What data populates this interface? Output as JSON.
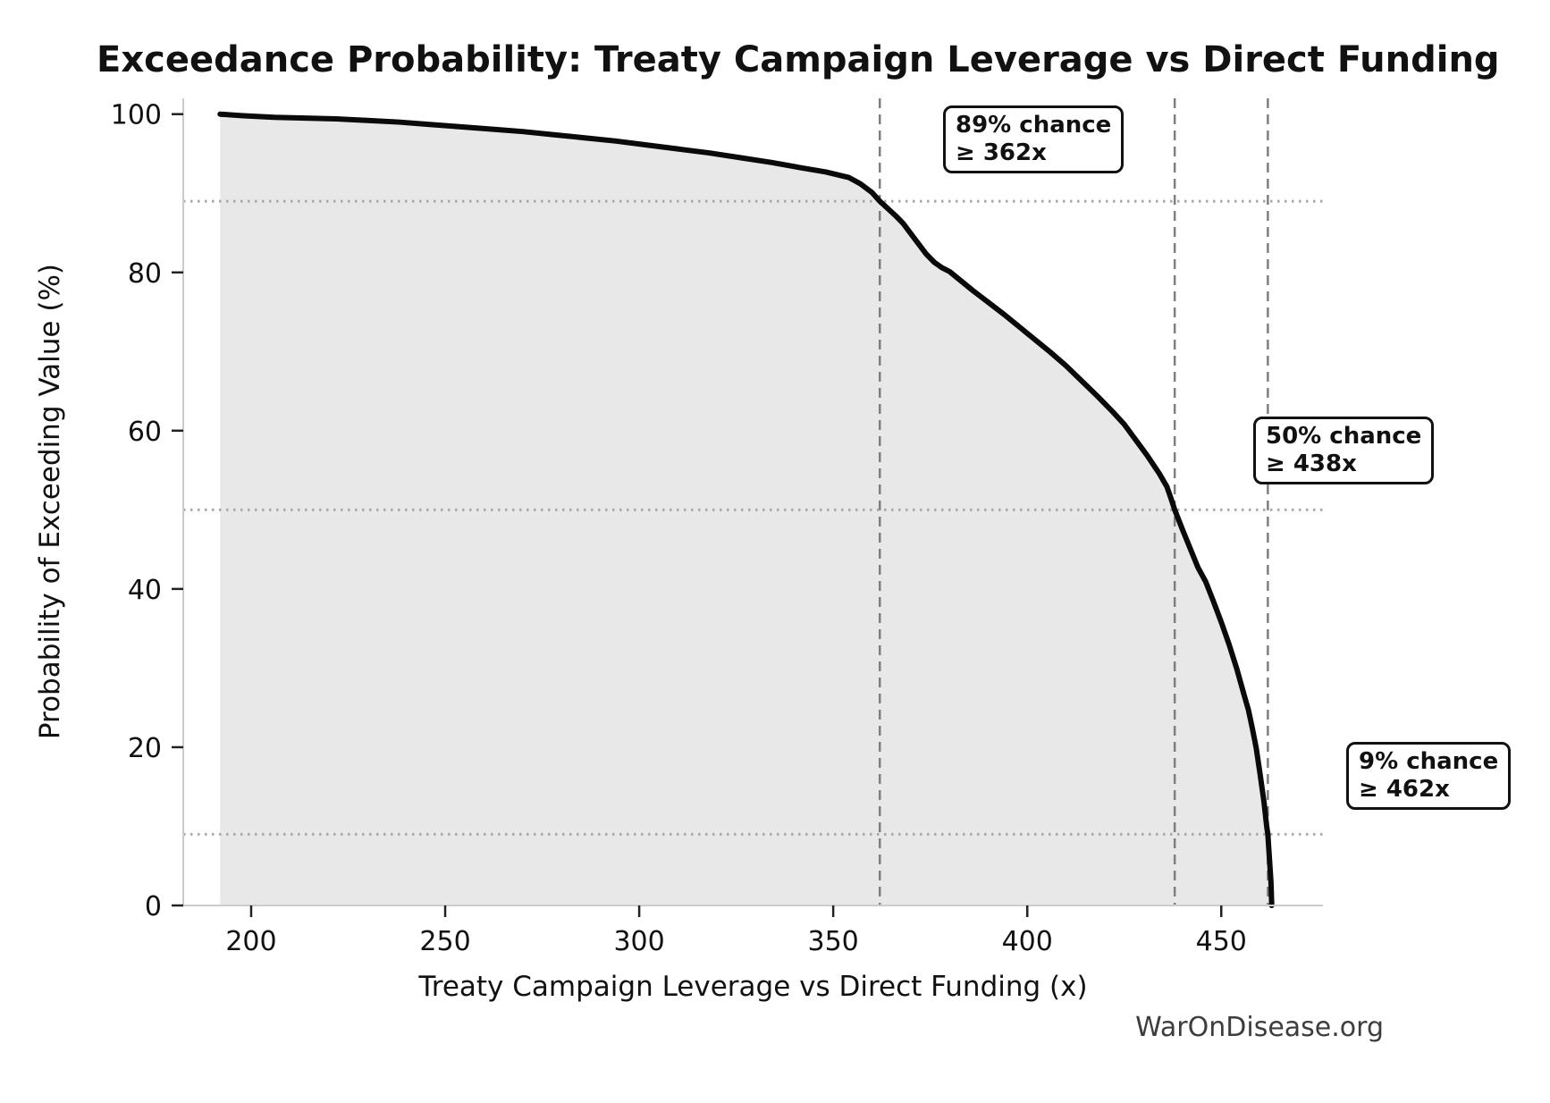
{
  "title": "Exceedance Probability: Treaty Campaign Leverage vs Direct Funding",
  "watermark": "WarOnDisease.org",
  "colors": {
    "curve": "#0a0a0a",
    "fill": "#e8e8e8",
    "dashed_line": "#7f7f7f",
    "dotted_line": "#a8a8a8",
    "spine": "#cccccc",
    "tick_mark": "#222222",
    "annotation_border": "#111111",
    "watermark_text": "#3d3d3d"
  },
  "chart_data": {
    "type": "area",
    "title": "Exceedance Probability: Treaty Campaign Leverage vs Direct Funding",
    "xlabel": "Treaty Campaign Leverage vs Direct Funding (x)",
    "ylabel": "Probability of Exceeding Value (%)",
    "xlim": [
      182.5,
      476.2
    ],
    "ylim": [
      0,
      102
    ],
    "x_ticks": [
      200,
      250,
      300,
      350,
      400,
      450
    ],
    "y_ticks": [
      0,
      20,
      40,
      60,
      80,
      100
    ],
    "grid": "off",
    "legend": "none",
    "series": [
      {
        "name": "exceedance-curve",
        "points": [
          [
            192,
            100
          ],
          [
            198,
            99.8
          ],
          [
            206,
            99.6
          ],
          [
            214,
            99.5
          ],
          [
            222,
            99.4
          ],
          [
            230,
            99.2
          ],
          [
            238,
            99.0
          ],
          [
            246,
            98.7
          ],
          [
            254,
            98.4
          ],
          [
            262,
            98.1
          ],
          [
            270,
            97.8
          ],
          [
            278,
            97.4
          ],
          [
            286,
            97.0
          ],
          [
            294,
            96.6
          ],
          [
            302,
            96.1
          ],
          [
            310,
            95.6
          ],
          [
            318,
            95.1
          ],
          [
            326,
            94.5
          ],
          [
            334,
            93.9
          ],
          [
            342,
            93.2
          ],
          [
            348,
            92.7
          ],
          [
            354,
            92.0
          ],
          [
            357,
            91.2
          ],
          [
            360,
            90.1
          ],
          [
            362,
            89.0
          ],
          [
            364,
            88.1
          ],
          [
            366,
            87.2
          ],
          [
            368,
            86.2
          ],
          [
            370,
            84.9
          ],
          [
            372,
            83.6
          ],
          [
            374,
            82.3
          ],
          [
            376,
            81.3
          ],
          [
            378,
            80.6
          ],
          [
            380,
            80.1
          ],
          [
            383,
            78.9
          ],
          [
            386,
            77.7
          ],
          [
            390,
            76.2
          ],
          [
            394,
            74.7
          ],
          [
            398,
            73.1
          ],
          [
            402,
            71.5
          ],
          [
            406,
            69.9
          ],
          [
            410,
            68.2
          ],
          [
            414,
            66.3
          ],
          [
            418,
            64.4
          ],
          [
            422,
            62.4
          ],
          [
            425,
            60.8
          ],
          [
            428,
            58.8
          ],
          [
            431,
            56.8
          ],
          [
            434,
            54.6
          ],
          [
            436,
            52.9
          ],
          [
            437,
            51.5
          ],
          [
            438,
            50.0
          ],
          [
            440,
            47.5
          ],
          [
            442,
            45.1
          ],
          [
            444,
            42.7
          ],
          [
            446,
            40.9
          ],
          [
            448,
            38.4
          ],
          [
            450,
            35.8
          ],
          [
            452,
            33.0
          ],
          [
            454,
            29.9
          ],
          [
            456,
            26.4
          ],
          [
            457,
            24.7
          ],
          [
            458,
            22.4
          ],
          [
            459,
            19.9
          ],
          [
            460,
            16.6
          ],
          [
            461,
            13.1
          ],
          [
            461.7,
            10.0
          ],
          [
            462,
            9.0
          ],
          [
            462.4,
            6.0
          ],
          [
            462.8,
            3.0
          ],
          [
            463,
            0
          ]
        ]
      }
    ],
    "reference_lines": {
      "vertical_dashed_x": [
        362,
        438,
        462
      ],
      "horizontal_dotted_y": [
        89,
        50,
        9
      ]
    },
    "annotations": [
      {
        "line1": "89% chance",
        "line2": "≥ 362x",
        "x": 362,
        "probability": 89
      },
      {
        "line1": "50% chance",
        "line2": "≥ 438x",
        "x": 438,
        "probability": 50
      },
      {
        "line1": "9% chance",
        "line2": "≥ 462x",
        "x": 462,
        "probability": 9
      }
    ]
  }
}
